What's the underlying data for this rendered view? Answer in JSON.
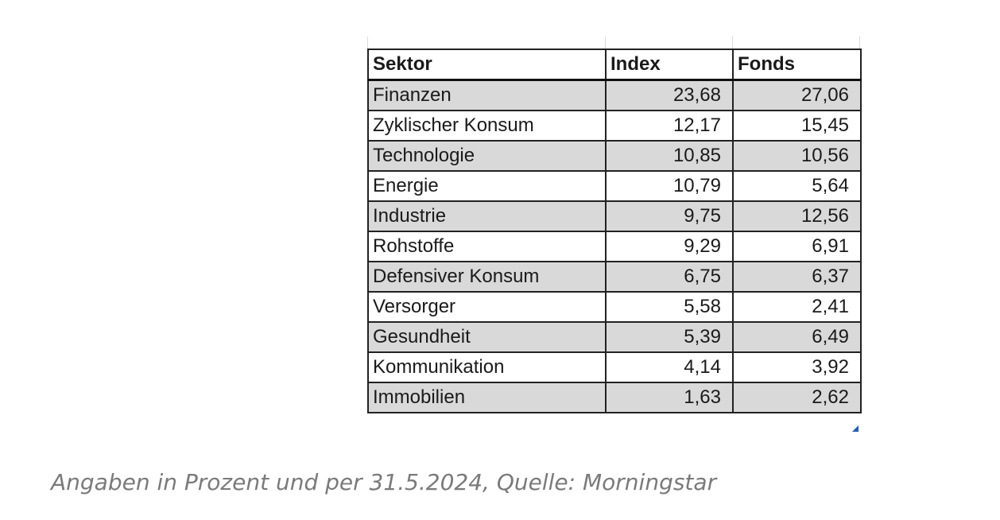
{
  "table": {
    "headers": [
      "Sektor",
      "Index",
      "Fonds"
    ],
    "rows": [
      [
        "Finanzen",
        "23,68",
        "27,06"
      ],
      [
        "Zyklischer Konsum",
        "12,17",
        "15,45"
      ],
      [
        "Technologie",
        "10,85",
        "10,56"
      ],
      [
        "Energie",
        "10,79",
        "5,64"
      ],
      [
        "Industrie",
        "9,75",
        "12,56"
      ],
      [
        "Rohstoffe",
        "9,29",
        "6,91"
      ],
      [
        "Defensiver Konsum",
        "6,75",
        "6,37"
      ],
      [
        "Versorger",
        "5,58",
        "2,41"
      ],
      [
        "Gesundheit",
        "5,39",
        "6,49"
      ],
      [
        "Kommunikation",
        "4,14",
        "3,92"
      ],
      [
        "Immobilien",
        "1,63",
        "2,62"
      ]
    ],
    "row_shading": "alternate-gray",
    "shade_color": "#d9d9d9"
  },
  "caption": "Angaben in Prozent und per 31.5.2024, Quelle: Morningstar"
}
